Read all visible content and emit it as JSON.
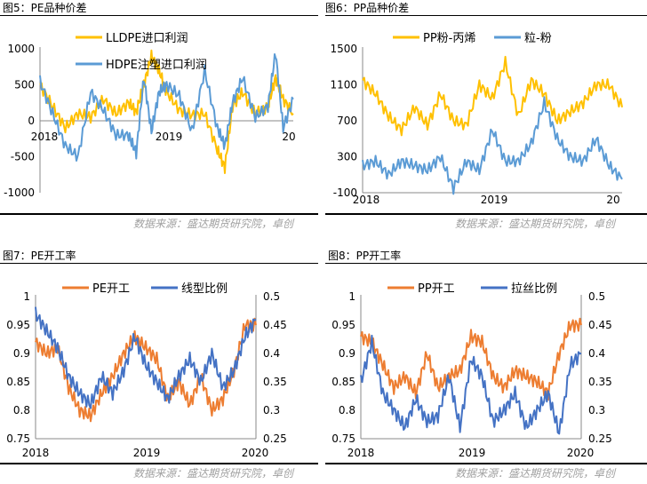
{
  "colors": {
    "orange": "#ED7D31",
    "blue": "#4472C4",
    "yellow": "#FFC000",
    "lightblue": "#5B9BD5",
    "source": "#a0a0a0"
  },
  "source_text": "数据来源：盛达期货研究院，卓创",
  "chart_data": [
    {
      "id": "fig5",
      "type": "line",
      "figure_title": "图5：PE品种价差",
      "series": [
        {
          "name": "LLDPE进口利润",
          "color": "#FFC000",
          "x": [
            0,
            0.05,
            0.1,
            0.15,
            0.2,
            0.25,
            0.3,
            0.35,
            0.38,
            0.41,
            0.44,
            0.47,
            0.5,
            0.55,
            0.6,
            0.65,
            0.7,
            0.73,
            0.76,
            0.8,
            0.85,
            0.9,
            0.93,
            0.96,
            1.0
          ],
          "values": [
            500,
            200,
            -100,
            100,
            50,
            300,
            100,
            250,
            120,
            500,
            900,
            700,
            400,
            150,
            80,
            100,
            -400,
            -650,
            200,
            400,
            100,
            200,
            600,
            300,
            100
          ]
        },
        {
          "name": "HDPE注塑进口利润",
          "color": "#5B9BD5",
          "x": [
            0,
            0.05,
            0.1,
            0.15,
            0.2,
            0.25,
            0.3,
            0.35,
            0.38,
            0.41,
            0.44,
            0.47,
            0.5,
            0.55,
            0.6,
            0.65,
            0.7,
            0.73,
            0.76,
            0.8,
            0.85,
            0.9,
            0.93,
            0.96,
            1.0
          ],
          "values": [
            550,
            100,
            -350,
            -500,
            400,
            150,
            -200,
            -200,
            -450,
            600,
            -150,
            400,
            500,
            350,
            -150,
            700,
            -100,
            -350,
            250,
            600,
            50,
            200,
            950,
            -100,
            300
          ]
        }
      ],
      "yleft": {
        "min": -1000,
        "max": 1000,
        "ticks": [
          1000,
          500,
          0,
          -500,
          -1000
        ]
      },
      "x_tick_labels": [
        "2018",
        "2019",
        "20"
      ]
    },
    {
      "id": "fig6",
      "type": "line",
      "figure_title": "图6：PP品种价差",
      "series": [
        {
          "name": "PP粉-丙烯",
          "color": "#FFC000",
          "x": [
            0,
            0.05,
            0.1,
            0.15,
            0.2,
            0.25,
            0.3,
            0.35,
            0.4,
            0.45,
            0.5,
            0.55,
            0.6,
            0.65,
            0.7,
            0.75,
            0.8,
            0.85,
            0.9,
            0.95,
            1.0
          ],
          "values": [
            1150,
            1000,
            750,
            600,
            850,
            650,
            1000,
            700,
            650,
            1100,
            950,
            1350,
            750,
            1150,
            1000,
            700,
            800,
            900,
            1100,
            1100,
            850
          ]
        },
        {
          "name": "粒-粉",
          "color": "#5B9BD5",
          "x": [
            0,
            0.05,
            0.1,
            0.15,
            0.2,
            0.25,
            0.3,
            0.35,
            0.4,
            0.45,
            0.5,
            0.55,
            0.6,
            0.65,
            0.7,
            0.75,
            0.8,
            0.85,
            0.9,
            0.95,
            1.0
          ],
          "values": [
            200,
            250,
            100,
            250,
            200,
            150,
            300,
            -50,
            250,
            150,
            600,
            250,
            250,
            450,
            900,
            500,
            300,
            250,
            500,
            200,
            50
          ]
        }
      ],
      "yleft": {
        "min": -100,
        "max": 1500,
        "ticks": [
          1500,
          1100,
          700,
          300,
          -100
        ]
      },
      "x_tick_labels": [
        "2018",
        "2019",
        "20"
      ]
    },
    {
      "id": "fig7",
      "type": "line",
      "figure_title": "图7：PE开工率",
      "series": [
        {
          "name": "PE开工",
          "color": "#ED7D31",
          "axis": "left",
          "x": [
            0,
            0.05,
            0.1,
            0.15,
            0.2,
            0.25,
            0.3,
            0.35,
            0.4,
            0.45,
            0.5,
            0.55,
            0.6,
            0.65,
            0.7,
            0.75,
            0.8,
            0.85,
            0.9,
            0.95,
            1.0
          ],
          "values": [
            0.92,
            0.9,
            0.91,
            0.84,
            0.8,
            0.79,
            0.83,
            0.86,
            0.9,
            0.93,
            0.91,
            0.89,
            0.82,
            0.85,
            0.81,
            0.86,
            0.8,
            0.82,
            0.87,
            0.95,
            0.95
          ]
        },
        {
          "name": "线型比例",
          "color": "#4472C4",
          "axis": "right",
          "x": [
            0,
            0.05,
            0.1,
            0.15,
            0.2,
            0.25,
            0.3,
            0.35,
            0.4,
            0.45,
            0.5,
            0.55,
            0.6,
            0.65,
            0.7,
            0.75,
            0.8,
            0.85,
            0.9,
            0.95,
            1.0
          ],
          "values": [
            0.47,
            0.44,
            0.41,
            0.36,
            0.33,
            0.31,
            0.36,
            0.33,
            0.37,
            0.43,
            0.38,
            0.35,
            0.32,
            0.36,
            0.39,
            0.35,
            0.4,
            0.34,
            0.37,
            0.43,
            0.46
          ]
        }
      ],
      "yleft": {
        "min": 0.75,
        "max": 1,
        "ticks": [
          "1",
          "0.95",
          "0.9",
          "0.85",
          "0.8",
          "0.75"
        ]
      },
      "yright": {
        "min": 0.25,
        "max": 0.5,
        "ticks": [
          "0.5",
          "0.45",
          "0.4",
          "0.35",
          "0.3",
          "0.25"
        ]
      },
      "x_tick_labels": [
        "2018",
        "2019",
        "2020"
      ]
    },
    {
      "id": "fig8",
      "type": "line",
      "figure_title": "图8：PP开工率",
      "series": [
        {
          "name": "PP开工",
          "color": "#ED7D31",
          "axis": "left",
          "x": [
            0,
            0.05,
            0.1,
            0.15,
            0.2,
            0.25,
            0.3,
            0.35,
            0.4,
            0.45,
            0.5,
            0.55,
            0.6,
            0.65,
            0.7,
            0.75,
            0.8,
            0.85,
            0.9,
            0.95,
            1.0
          ],
          "values": [
            0.93,
            0.92,
            0.88,
            0.84,
            0.86,
            0.83,
            0.9,
            0.84,
            0.86,
            0.87,
            0.93,
            0.92,
            0.86,
            0.84,
            0.87,
            0.86,
            0.85,
            0.83,
            0.9,
            0.95,
            0.95
          ]
        },
        {
          "name": "拉丝比例",
          "color": "#4472C4",
          "axis": "right",
          "x": [
            0,
            0.05,
            0.1,
            0.15,
            0.2,
            0.25,
            0.3,
            0.35,
            0.4,
            0.45,
            0.5,
            0.55,
            0.6,
            0.65,
            0.7,
            0.75,
            0.8,
            0.85,
            0.9,
            0.95,
            1.0
          ],
          "values": [
            0.35,
            0.42,
            0.33,
            0.3,
            0.27,
            0.32,
            0.28,
            0.29,
            0.36,
            0.27,
            0.39,
            0.36,
            0.28,
            0.3,
            0.33,
            0.27,
            0.3,
            0.33,
            0.26,
            0.38,
            0.4
          ]
        }
      ],
      "yleft": {
        "min": 0.75,
        "max": 1,
        "ticks": [
          "1",
          "0.95",
          "0.9",
          "0.85",
          "0.8",
          "0.75"
        ]
      },
      "yright": {
        "min": 0.25,
        "max": 0.5,
        "ticks": [
          "0.5",
          "0.45",
          "0.4",
          "0.35",
          "0.3",
          "0.25"
        ]
      },
      "x_tick_labels": [
        "2018",
        "2019",
        "2020"
      ]
    }
  ]
}
